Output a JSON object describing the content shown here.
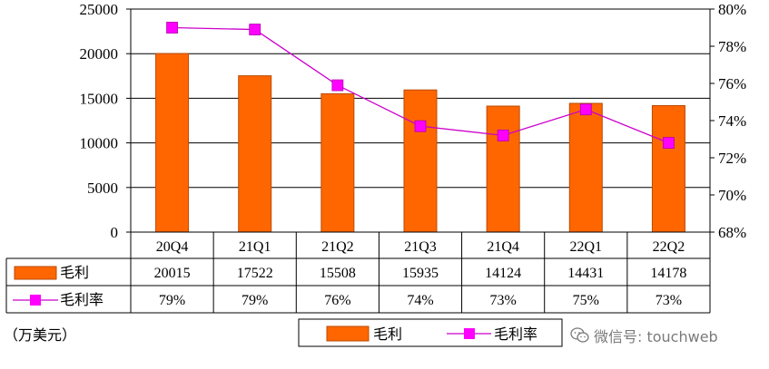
{
  "chart_data": {
    "type": "bar+line",
    "categories": [
      "20Q4",
      "21Q1",
      "21Q2",
      "21Q3",
      "21Q4",
      "22Q1",
      "22Q2"
    ],
    "series": [
      {
        "name": "毛利",
        "type": "bar",
        "axis": "left",
        "values": [
          20015,
          17522,
          15508,
          15935,
          14124,
          14431,
          14178
        ]
      },
      {
        "name": "毛利率",
        "type": "line",
        "axis": "right",
        "values": [
          79.0,
          78.9,
          75.9,
          73.7,
          73.2,
          74.6,
          72.8
        ],
        "table_labels": [
          "79%",
          "79%",
          "76%",
          "74%",
          "73%",
          "75%",
          "73%"
        ]
      }
    ],
    "y_left": {
      "lim": [
        0,
        25000
      ],
      "ticks": [
        "0",
        "5000",
        "10000",
        "15000",
        "20000",
        "25000"
      ]
    },
    "y_right": {
      "lim": [
        68,
        80
      ],
      "ticks": [
        "68%",
        "70%",
        "72%",
        "74%",
        "76%",
        "78%",
        "80%"
      ]
    },
    "grid": true,
    "legend_position": "bottom-center",
    "unit_label": "（万美元）",
    "colors": {
      "bar": "#FF6600",
      "bar_edge": "#b94a00",
      "line": "#CC00CC",
      "marker": "#FF00FF"
    }
  },
  "watermark": {
    "text": "微信号: touchweb",
    "icon": "wechat-icon"
  }
}
